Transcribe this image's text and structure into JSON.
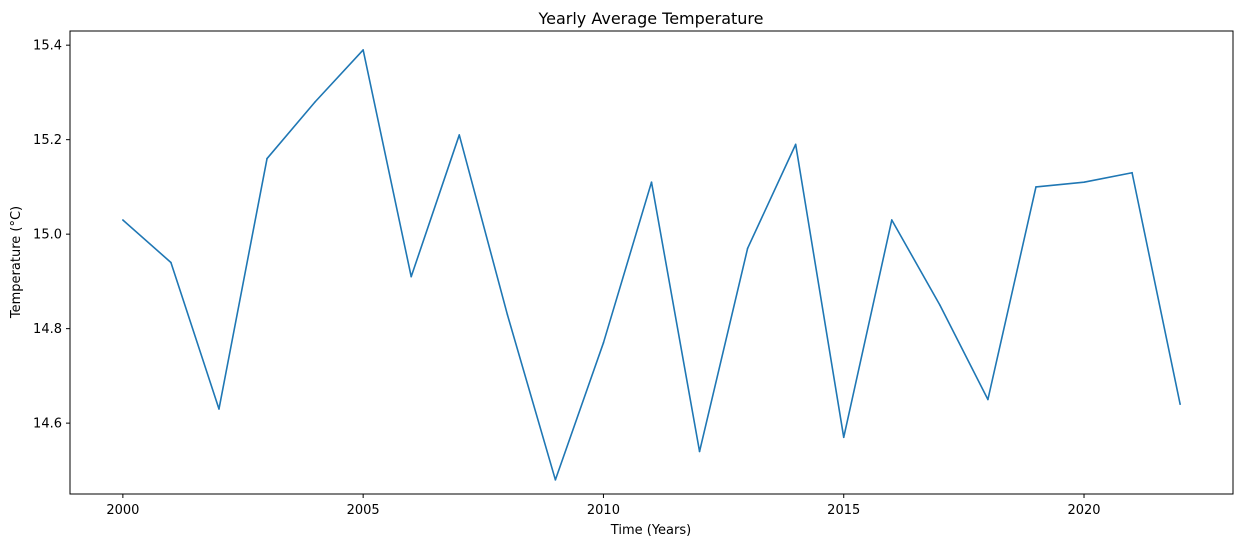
{
  "chart_data": {
    "type": "line",
    "title": "Yearly Average Temperature",
    "xlabel": "Time (Years)",
    "ylabel": "Temperature (°C)",
    "xlim": [
      1998.9,
      2023.1
    ],
    "ylim": [
      14.45,
      15.43
    ],
    "xticks": [
      2000,
      2005,
      2010,
      2015,
      2020
    ],
    "xtick_labels": [
      "2000",
      "2005",
      "2010",
      "2015",
      "2020"
    ],
    "yticks": [
      14.6,
      14.8,
      15.0,
      15.2,
      15.4
    ],
    "ytick_labels": [
      "14.6",
      "14.8",
      "15.0",
      "15.2",
      "15.4"
    ],
    "grid": false,
    "line_color": "#1f77b4",
    "series": [
      {
        "x": [
          2000,
          2001,
          2002,
          2003,
          2004,
          2005,
          2006,
          2007,
          2008,
          2009,
          2010,
          2011,
          2012,
          2013,
          2014,
          2015,
          2016,
          2017,
          2018,
          2019,
          2020,
          2021,
          2022
        ],
        "values": [
          15.03,
          14.94,
          14.63,
          15.16,
          15.28,
          15.39,
          14.91,
          15.21,
          14.83,
          14.48,
          14.77,
          15.11,
          14.54,
          14.97,
          15.19,
          14.57,
          15.03,
          14.85,
          14.65,
          15.1,
          15.11,
          15.13,
          14.64
        ]
      }
    ]
  }
}
